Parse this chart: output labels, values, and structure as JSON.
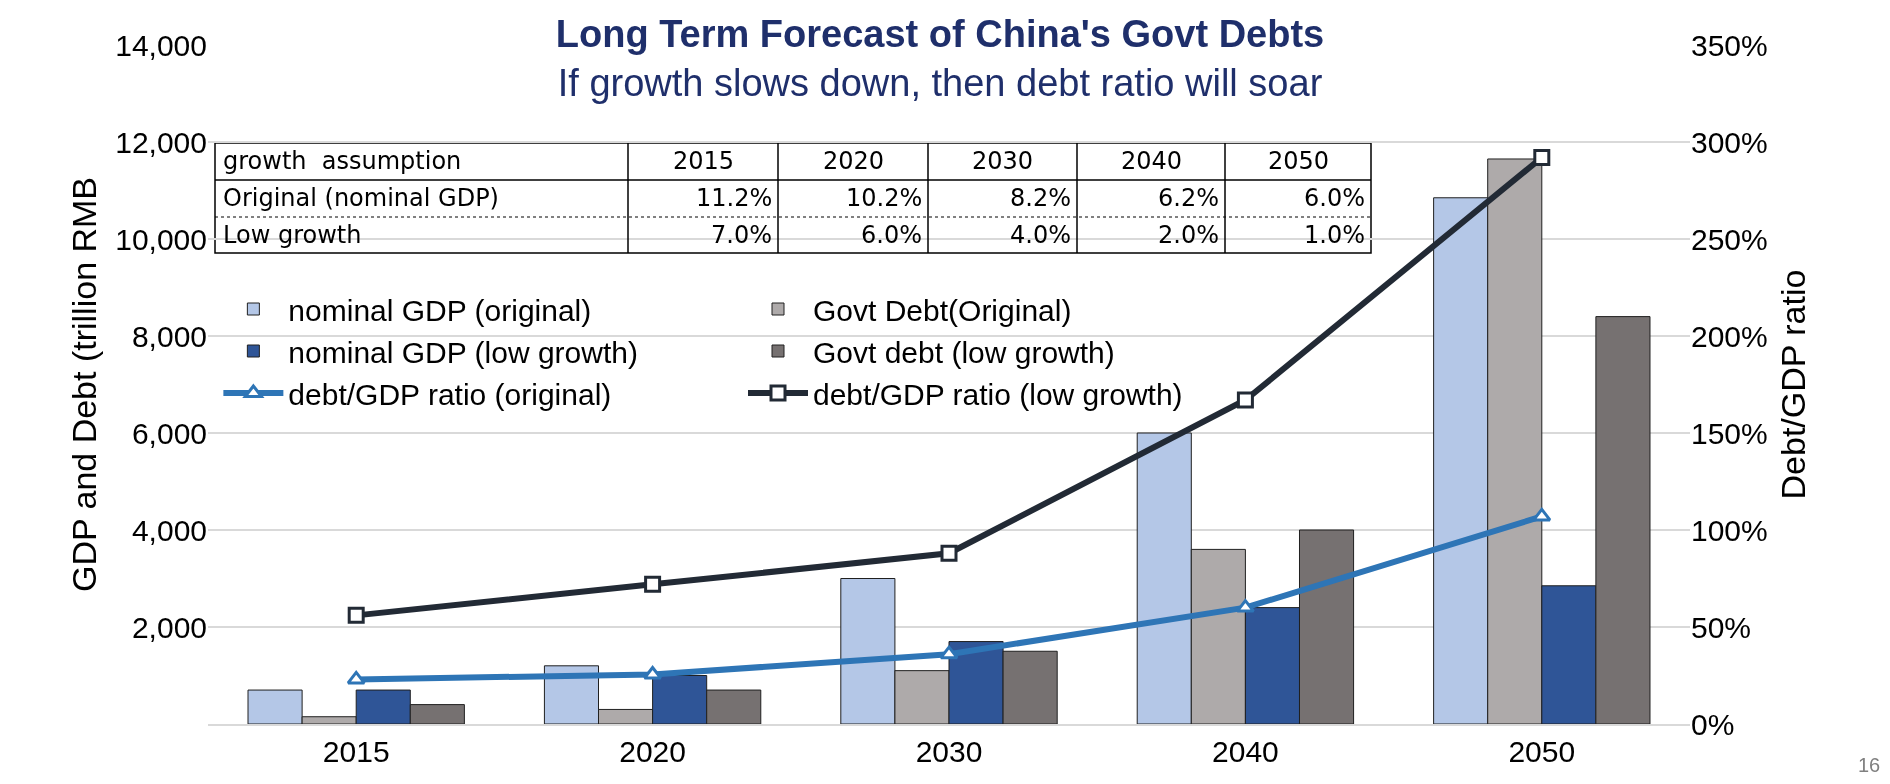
{
  "chart_data": {
    "type": "bar",
    "title": "Long Term Forecast of China's Govt Debts",
    "subtitle": "If growth slows down, then debt ratio will soar",
    "ylabel": "GDP and Debt (trillion RMB",
    "y2label": "Debt/GDP ratio",
    "categories": [
      "2015",
      "2020",
      "2030",
      "2040",
      "2050"
    ],
    "series": [
      {
        "name": "nominal GDP (original)",
        "color": "#b4c7e7",
        "values": [
          700,
          1200,
          3000,
          6000,
          10850
        ]
      },
      {
        "name": "Govt Debt(Original)",
        "color": "#aeaaaa",
        "values": [
          150,
          300,
          1100,
          3600,
          11650
        ]
      },
      {
        "name": "nominal GDP (low growth)",
        "color": "#2f5597",
        "values": [
          700,
          1000,
          1700,
          2400,
          2850
        ]
      },
      {
        "name": "Govt debt (low growth)",
        "color": "#767171",
        "values": [
          400,
          700,
          1500,
          4000,
          8400
        ]
      },
      {
        "name": "debt/GDP ratio (original)",
        "type": "line",
        "axis": "y2",
        "marker": "triangle",
        "color": "#2e75b6",
        "values": [
          23,
          25.5,
          36,
          60,
          107
        ]
      },
      {
        "name": "debt/GDP ratio (low growth)",
        "type": "line",
        "axis": "y2",
        "marker": "square",
        "color": "#222a35",
        "values": [
          56,
          72,
          88,
          167,
          292
        ]
      }
    ],
    "ylim": [
      0,
      14000
    ],
    "yticks": [
      {
        "value": 0,
        "label": null
      },
      {
        "value": 2000,
        "label": "2,000"
      },
      {
        "value": 4000,
        "label": "4,000"
      },
      {
        "value": 6000,
        "label": "6,000"
      },
      {
        "value": 8000,
        "label": "8,000"
      },
      {
        "value": 10000,
        "label": "10,000"
      },
      {
        "value": 12000,
        "label": "12,000"
      },
      {
        "value": 14000,
        "label": "14,000"
      }
    ],
    "y2lim": [
      0,
      350
    ],
    "y2ticks": [
      {
        "value": 0,
        "label": "0%"
      },
      {
        "value": 50,
        "label": "50%"
      },
      {
        "value": 100,
        "label": "100%"
      },
      {
        "value": 150,
        "label": "150%"
      },
      {
        "value": 200,
        "label": "200%"
      },
      {
        "value": 250,
        "label": "250%"
      },
      {
        "value": 300,
        "label": "300%"
      },
      {
        "value": 350,
        "label": "350%"
      }
    ],
    "grid": "y",
    "legend": "top left",
    "annotations": [
      "growth  assumption",
      "2015",
      "2020",
      "2030",
      "2040",
      "2050",
      "Original (nominal GDP)",
      "11.2%",
      "10.2%",
      "8.2%",
      "6.2%",
      "6.0%",
      "Low growth",
      "7.0%",
      "6.0%",
      "4.0%",
      "2.0%",
      "1.0%",
      "16"
    ]
  }
}
